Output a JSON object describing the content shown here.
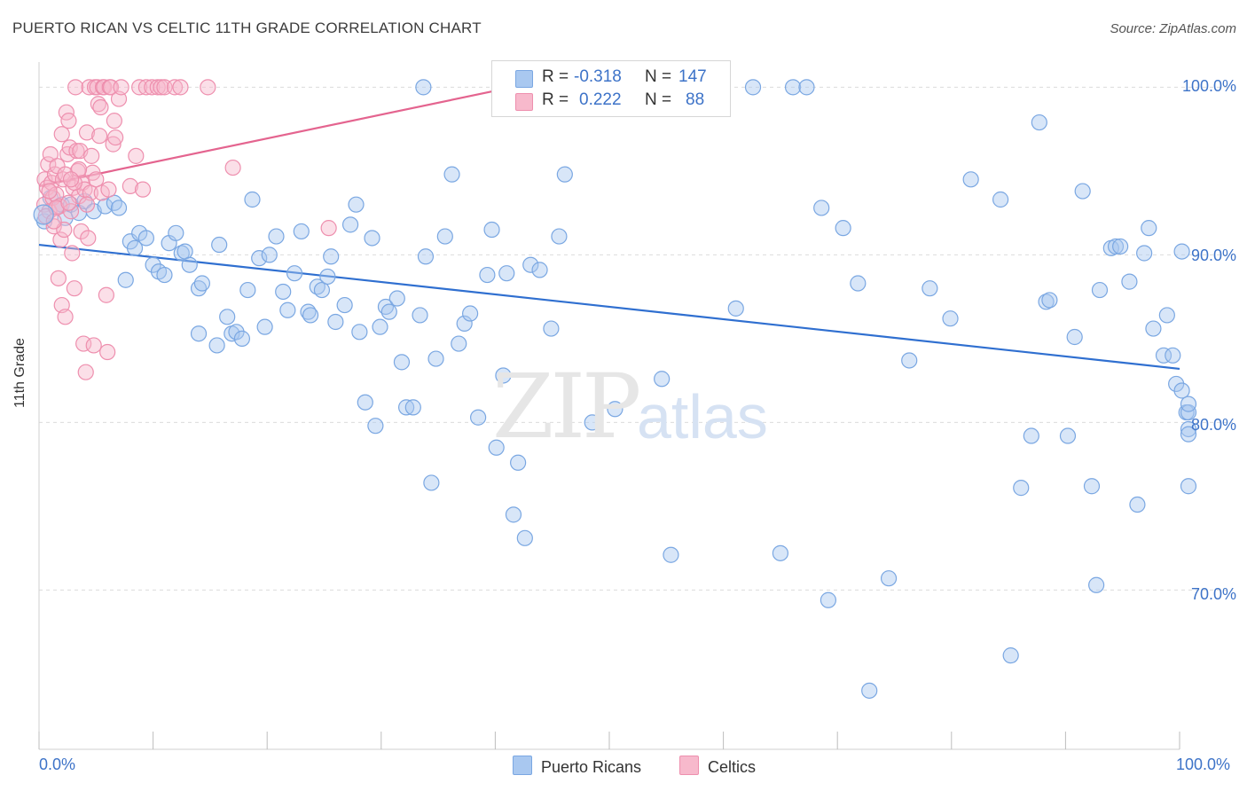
{
  "header": {
    "title": "PUERTO RICAN VS CELTIC 11TH GRADE CORRELATION CHART",
    "source": "Source: ZipAtlas.com"
  },
  "watermark": {
    "zip": "ZIP",
    "atlas": "atlas"
  },
  "legend": {
    "rows": [
      {
        "r_label": "R =",
        "r_value": "-0.318",
        "n_label": "N =",
        "n_value": "147",
        "color": "#a9c8f0",
        "border": "#7aa7e2"
      },
      {
        "r_label": "R =",
        "r_value": "0.222",
        "n_label": "N =",
        "n_value": "88",
        "color": "#f7b9cc",
        "border": "#ee8fae"
      }
    ],
    "bottom": [
      {
        "label": "Puerto Ricans",
        "color": "#a9c8f0",
        "border": "#7aa7e2"
      },
      {
        "label": "Celtics",
        "color": "#f7b9cc",
        "border": "#ee8fae"
      }
    ]
  },
  "chart_data": {
    "type": "scatter",
    "title": "PUERTO RICAN VS CELTIC 11TH GRADE CORRELATION CHART",
    "xlabel": "",
    "ylabel": "11th Grade",
    "xlim": [
      0,
      100
    ],
    "ylim": [
      60.5,
      101.5
    ],
    "x_tick_labels": [
      "0.0%",
      "100.0%"
    ],
    "y_ticks": [
      70,
      80,
      90,
      100
    ],
    "y_tick_labels": [
      "70.0%",
      "80.0%",
      "90.0%",
      "100.0%"
    ],
    "grid": "horizontal dashed",
    "legend_position": "top-center",
    "series": [
      {
        "name": "Puerto Ricans",
        "color": "#7aa7e2",
        "fill": "#a9c8f0",
        "trend": {
          "x": [
            0,
            100
          ],
          "y": [
            90.6,
            83.2
          ],
          "color": "#2f6fd0"
        },
        "points": [
          [
            0.4,
            92.0
          ],
          [
            1.0,
            93.4
          ],
          [
            1.5,
            92.8
          ],
          [
            2.0,
            93.0
          ],
          [
            2.3,
            92.2
          ],
          [
            2.8,
            93.0
          ],
          [
            3.5,
            92.5
          ],
          [
            4.0,
            93.2
          ],
          [
            4.8,
            92.6
          ],
          [
            5.8,
            92.9
          ],
          [
            6.6,
            93.1
          ],
          [
            7.0,
            92.8
          ],
          [
            7.6,
            88.5
          ],
          [
            8.0,
            90.8
          ],
          [
            8.4,
            90.4
          ],
          [
            8.8,
            91.3
          ],
          [
            9.4,
            91.0
          ],
          [
            10.0,
            89.4
          ],
          [
            10.5,
            89.0
          ],
          [
            11.0,
            88.8
          ],
          [
            11.4,
            90.7
          ],
          [
            12.0,
            91.3
          ],
          [
            12.5,
            90.1
          ],
          [
            12.8,
            90.2
          ],
          [
            13.2,
            89.4
          ],
          [
            14.0,
            88.0
          ],
          [
            14.3,
            88.3
          ],
          [
            14.0,
            85.3
          ],
          [
            15.6,
            84.6
          ],
          [
            15.8,
            90.6
          ],
          [
            16.5,
            86.3
          ],
          [
            16.9,
            85.3
          ],
          [
            17.3,
            85.4
          ],
          [
            17.8,
            85.0
          ],
          [
            18.3,
            87.9
          ],
          [
            18.7,
            93.3
          ],
          [
            19.3,
            89.8
          ],
          [
            19.8,
            85.7
          ],
          [
            20.2,
            90.0
          ],
          [
            20.8,
            91.1
          ],
          [
            21.4,
            87.8
          ],
          [
            21.8,
            86.7
          ],
          [
            22.4,
            88.9
          ],
          [
            23.0,
            91.4
          ],
          [
            23.6,
            86.6
          ],
          [
            23.8,
            86.4
          ],
          [
            24.4,
            88.1
          ],
          [
            24.8,
            87.9
          ],
          [
            25.3,
            88.7
          ],
          [
            25.6,
            89.9
          ],
          [
            26.0,
            86.0
          ],
          [
            26.8,
            87.0
          ],
          [
            27.3,
            91.8
          ],
          [
            27.8,
            93.0
          ],
          [
            28.1,
            85.4
          ],
          [
            28.6,
            81.2
          ],
          [
            29.2,
            91.0
          ],
          [
            29.5,
            79.8
          ],
          [
            29.9,
            85.7
          ],
          [
            30.4,
            86.9
          ],
          [
            30.7,
            86.6
          ],
          [
            31.4,
            87.4
          ],
          [
            31.8,
            83.6
          ],
          [
            32.2,
            80.9
          ],
          [
            32.8,
            80.9
          ],
          [
            33.4,
            86.4
          ],
          [
            33.9,
            89.9
          ],
          [
            34.4,
            76.4
          ],
          [
            34.8,
            83.8
          ],
          [
            35.6,
            91.1
          ],
          [
            36.2,
            94.8
          ],
          [
            36.8,
            84.7
          ],
          [
            37.3,
            85.9
          ],
          [
            37.8,
            86.5
          ],
          [
            38.5,
            80.3
          ],
          [
            39.3,
            88.8
          ],
          [
            39.7,
            91.5
          ],
          [
            40.1,
            78.5
          ],
          [
            40.7,
            82.8
          ],
          [
            41.0,
            88.9
          ],
          [
            41.6,
            74.5
          ],
          [
            42.0,
            77.6
          ],
          [
            42.6,
            73.1
          ],
          [
            43.1,
            89.4
          ],
          [
            43.9,
            89.1
          ],
          [
            44.3,
            100.0
          ],
          [
            44.9,
            85.6
          ],
          [
            45.6,
            91.1
          ],
          [
            46.1,
            94.8
          ],
          [
            47.2,
            99.1
          ],
          [
            48.5,
            80.0
          ],
          [
            50.5,
            80.8
          ],
          [
            52.9,
            100.0
          ],
          [
            53.7,
            100.0
          ],
          [
            54.6,
            82.6
          ],
          [
            55.4,
            72.1
          ],
          [
            57.3,
            100.0
          ],
          [
            59.0,
            100.0
          ],
          [
            61.1,
            86.8
          ],
          [
            62.6,
            100.0
          ],
          [
            65.0,
            72.2
          ],
          [
            66.1,
            100.0
          ],
          [
            67.3,
            100.0
          ],
          [
            68.6,
            92.8
          ],
          [
            69.2,
            69.4
          ],
          [
            70.5,
            91.6
          ],
          [
            71.8,
            88.3
          ],
          [
            72.8,
            64.0
          ],
          [
            74.5,
            70.7
          ],
          [
            76.3,
            83.7
          ],
          [
            78.1,
            88.0
          ],
          [
            79.9,
            86.2
          ],
          [
            81.7,
            94.5
          ],
          [
            84.3,
            93.3
          ],
          [
            85.2,
            66.1
          ],
          [
            86.1,
            76.1
          ],
          [
            87.0,
            79.2
          ],
          [
            87.7,
            97.9
          ],
          [
            88.3,
            87.2
          ],
          [
            88.6,
            87.3
          ],
          [
            90.2,
            79.2
          ],
          [
            90.8,
            85.1
          ],
          [
            91.5,
            93.8
          ],
          [
            92.3,
            76.2
          ],
          [
            92.7,
            70.3
          ],
          [
            93.0,
            87.9
          ],
          [
            94.0,
            90.4
          ],
          [
            94.4,
            90.5
          ],
          [
            94.8,
            90.5
          ],
          [
            95.6,
            88.4
          ],
          [
            96.3,
            75.1
          ],
          [
            96.9,
            90.1
          ],
          [
            97.3,
            91.6
          ],
          [
            97.7,
            85.6
          ],
          [
            98.6,
            84.0
          ],
          [
            98.9,
            86.4
          ],
          [
            99.4,
            84.0
          ],
          [
            99.7,
            82.3
          ],
          [
            100.2,
            81.9
          ],
          [
            100.6,
            80.6
          ],
          [
            101.0,
            80.6
          ],
          [
            101.4,
            81.1
          ],
          [
            102.0,
            79.6
          ],
          [
            102.4,
            79.3
          ],
          [
            102.8,
            76.2
          ],
          [
            33.7,
            100.0
          ],
          [
            100.2,
            90.2
          ]
        ]
      },
      {
        "name": "Celtics",
        "color": "#ee8fae",
        "fill": "#f7b9cc",
        "trend": {
          "x": [
            0,
            41.5
          ],
          "y": [
            94.1,
            100.0
          ],
          "color": "#e4648f"
        },
        "points": [
          [
            0.3,
            93.0
          ],
          [
            0.5,
            94.5
          ],
          [
            0.7,
            94.0
          ],
          [
            0.8,
            95.4
          ],
          [
            0.9,
            92.6
          ],
          [
            1.0,
            96.0
          ],
          [
            1.1,
            94.3
          ],
          [
            1.2,
            93.4
          ],
          [
            1.3,
            91.7
          ],
          [
            1.4,
            94.8
          ],
          [
            1.5,
            93.6
          ],
          [
            1.6,
            95.3
          ],
          [
            1.7,
            88.6
          ],
          [
            1.8,
            92.9
          ],
          [
            1.9,
            90.9
          ],
          [
            2.0,
            97.2
          ],
          [
            2.0,
            87.0
          ],
          [
            2.1,
            94.5
          ],
          [
            2.2,
            91.5
          ],
          [
            2.3,
            86.3
          ],
          [
            2.4,
            98.5
          ],
          [
            2.5,
            96.0
          ],
          [
            2.6,
            98.0
          ],
          [
            2.7,
            96.4
          ],
          [
            2.8,
            92.6
          ],
          [
            2.9,
            90.1
          ],
          [
            3.0,
            94.0
          ],
          [
            3.1,
            88.0
          ],
          [
            3.2,
            100.0
          ],
          [
            3.3,
            96.2
          ],
          [
            3.4,
            95.0
          ],
          [
            3.5,
            93.5
          ],
          [
            3.6,
            96.2
          ],
          [
            3.7,
            91.4
          ],
          [
            3.8,
            94.3
          ],
          [
            3.9,
            84.7
          ],
          [
            4.0,
            93.9
          ],
          [
            4.1,
            83.0
          ],
          [
            4.2,
            97.3
          ],
          [
            4.3,
            91.0
          ],
          [
            4.4,
            100.0
          ],
          [
            4.5,
            93.7
          ],
          [
            4.6,
            95.9
          ],
          [
            4.7,
            94.9
          ],
          [
            4.8,
            84.6
          ],
          [
            4.9,
            100.0
          ],
          [
            5.0,
            94.5
          ],
          [
            5.1,
            100.0
          ],
          [
            5.2,
            99.0
          ],
          [
            5.3,
            97.1
          ],
          [
            5.4,
            98.8
          ],
          [
            5.5,
            93.7
          ],
          [
            5.6,
            100.0
          ],
          [
            5.7,
            100.0
          ],
          [
            5.9,
            87.6
          ],
          [
            6.0,
            84.2
          ],
          [
            6.1,
            93.9
          ],
          [
            6.2,
            100.0
          ],
          [
            6.3,
            100.0
          ],
          [
            6.5,
            96.6
          ],
          [
            6.7,
            97.0
          ],
          [
            7.0,
            99.3
          ],
          [
            7.2,
            100.0
          ],
          [
            8.0,
            94.1
          ],
          [
            8.5,
            95.9
          ],
          [
            8.8,
            100.0
          ],
          [
            9.1,
            93.9
          ],
          [
            9.4,
            100.0
          ],
          [
            9.9,
            100.0
          ],
          [
            10.4,
            100.0
          ],
          [
            10.7,
            100.0
          ],
          [
            11.0,
            100.0
          ],
          [
            11.9,
            100.0
          ],
          [
            12.4,
            100.0
          ],
          [
            14.8,
            100.0
          ],
          [
            17.0,
            95.2
          ],
          [
            25.4,
            91.6
          ],
          [
            0.6,
            92.3
          ],
          [
            1.5,
            92.8
          ],
          [
            2.6,
            93.1
          ],
          [
            3.1,
            94.3
          ],
          [
            3.5,
            95.1
          ],
          [
            4.2,
            93.0
          ],
          [
            2.3,
            94.8
          ],
          [
            1.3,
            92.0
          ],
          [
            2.8,
            94.5
          ],
          [
            0.9,
            93.8
          ],
          [
            6.6,
            98.0
          ]
        ]
      }
    ]
  }
}
